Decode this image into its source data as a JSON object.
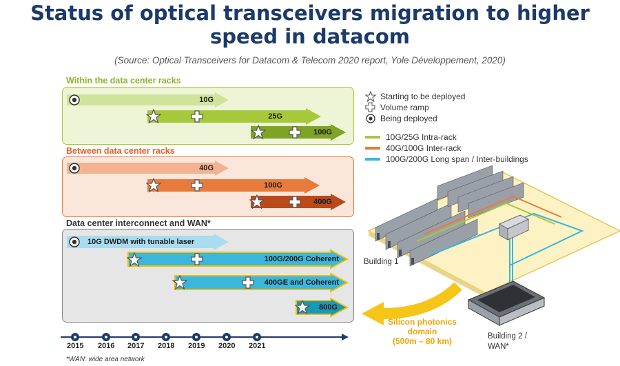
{
  "title_line1": "Status of optical transceivers migration to higher",
  "title_line2": "speed in datacom",
  "source": "(Source: Optical Transceivers for Datacom & Telecom 2020 report, Yole Développement, 2020)",
  "sections": [
    {
      "label": "Within the data center racks",
      "color": "#8db32b",
      "arrows": [
        {
          "label": "10G"
        },
        {
          "label": "25G"
        },
        {
          "label": "100G"
        }
      ]
    },
    {
      "label": "Between data center racks",
      "color": "#e0622b",
      "arrows": [
        {
          "label": "40G"
        },
        {
          "label": "100G"
        },
        {
          "label": "400G"
        }
      ]
    },
    {
      "label": "Data center interconnect and WAN*",
      "color": "#333333",
      "arrows": [
        {
          "label": "10G DWDM with  tunable laser"
        },
        {
          "label": "100G/200G Coherent"
        },
        {
          "label": "400GE and Coherent"
        },
        {
          "label": "800G"
        }
      ]
    }
  ],
  "legend": {
    "markers": [
      {
        "icon": "star-icon",
        "label": "Starting to be deployed"
      },
      {
        "icon": "cross-icon",
        "label": "Volume ramp"
      },
      {
        "icon": "dot-icon",
        "label": "Being deployed"
      }
    ],
    "lines": [
      {
        "label": "10G/25G Intra-rack",
        "color": "#a8c83c"
      },
      {
        "label": "40G/100G Inter-rack",
        "color": "#e87a3c"
      },
      {
        "label": "100G/200G Long span / Inter-buildings",
        "color": "#3bb6dc"
      }
    ]
  },
  "timeline": {
    "years": [
      "2015",
      "2016",
      "2017",
      "2018",
      "2019",
      "2020",
      "2021"
    ]
  },
  "footnote": "*WAN: wide area network",
  "illustration": {
    "building1": "Building 1",
    "building2_line1": "Building 2 /",
    "building2_line2": "WAN*",
    "silicon_line1": "Silicon photonics",
    "silicon_line2": "domain",
    "silicon_line3": "(500m – 80 km)"
  }
}
